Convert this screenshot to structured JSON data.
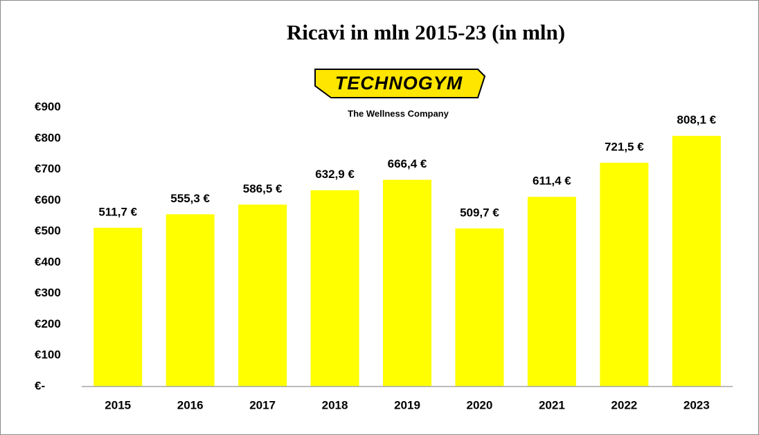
{
  "chart_data": {
    "type": "bar",
    "title": "Ricavi in mln 2015-23 (in mln)",
    "logo": {
      "brand": "TECHNOGYM",
      "tagline": "The Wellness Company"
    },
    "categories": [
      "2015",
      "2016",
      "2017",
      "2018",
      "2019",
      "2020",
      "2021",
      "2022",
      "2023"
    ],
    "values": [
      511.7,
      555.3,
      586.5,
      632.9,
      666.4,
      509.7,
      611.4,
      721.5,
      808.1
    ],
    "value_labels": [
      "511,7 €",
      "555,3 €",
      "586,5 €",
      "632,9 €",
      "666,4 €",
      "509,7 €",
      "611,4 €",
      "721,5 €",
      "808,1 €"
    ],
    "color": "#ffff00",
    "ylim": [
      0,
      900
    ],
    "yticks": [
      {
        "value": 0,
        "label": "€-"
      },
      {
        "value": 100,
        "label": "€100"
      },
      {
        "value": 200,
        "label": "€200"
      },
      {
        "value": 300,
        "label": "€300"
      },
      {
        "value": 400,
        "label": "€400"
      },
      {
        "value": 500,
        "label": "€500"
      },
      {
        "value": 600,
        "label": "€600"
      },
      {
        "value": 700,
        "label": "€700"
      },
      {
        "value": 800,
        "label": "€800"
      },
      {
        "value": 900,
        "label": "€900"
      }
    ],
    "grid": false
  }
}
